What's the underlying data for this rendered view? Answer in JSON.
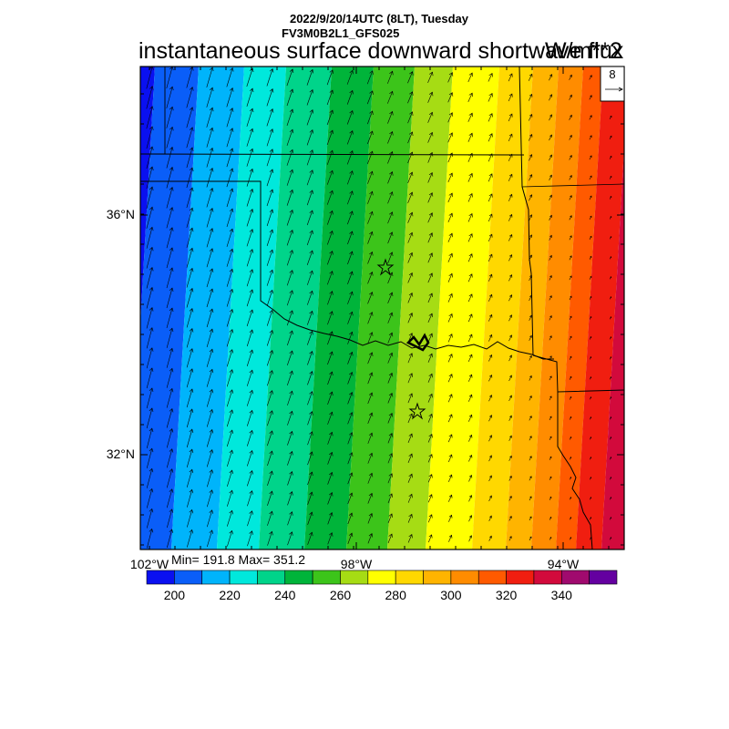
{
  "header": {
    "datetime": "2022/9/20/14UTC (8LT), Tuesday",
    "model": "FV3M0B2L1_GFS025",
    "title": "instantaneous surface downward shortwave flux",
    "units": "W/m**2"
  },
  "vector_reference": {
    "magnitude": "8"
  },
  "map": {
    "lat_labels": [
      "36°N",
      "32°N"
    ],
    "lon_labels": [
      "102°W",
      "98°W",
      "94°W"
    ],
    "stats": "Min= 191.8 Max= 351.2",
    "station_markers": [
      "star-icon",
      "star-icon"
    ]
  },
  "colorbar": {
    "tick_labels": [
      "200",
      "220",
      "240",
      "260",
      "280",
      "300",
      "320",
      "340"
    ],
    "bins": [
      {
        "lo": 190,
        "hi": 200,
        "color": "#0a10f0"
      },
      {
        "lo": 200,
        "hi": 210,
        "color": "#0a5ef8"
      },
      {
        "lo": 210,
        "hi": 220,
        "color": "#00b4fb"
      },
      {
        "lo": 220,
        "hi": 230,
        "color": "#00e8dc"
      },
      {
        "lo": 230,
        "hi": 240,
        "color": "#00d48a"
      },
      {
        "lo": 240,
        "hi": 250,
        "color": "#00b43a"
      },
      {
        "lo": 250,
        "hi": 260,
        "color": "#3cc41a"
      },
      {
        "lo": 260,
        "hi": 270,
        "color": "#a6dc14"
      },
      {
        "lo": 270,
        "hi": 280,
        "color": "#ffff00"
      },
      {
        "lo": 280,
        "hi": 290,
        "color": "#ffd800"
      },
      {
        "lo": 290,
        "hi": 300,
        "color": "#ffb400"
      },
      {
        "lo": 300,
        "hi": 310,
        "color": "#ff8c00"
      },
      {
        "lo": 310,
        "hi": 320,
        "color": "#ff5a00"
      },
      {
        "lo": 320,
        "hi": 330,
        "color": "#f01e10"
      },
      {
        "lo": 330,
        "hi": 340,
        "color": "#d20a3c"
      },
      {
        "lo": 340,
        "hi": 350,
        "color": "#a00a6e"
      },
      {
        "lo": 350,
        "hi": 360,
        "color": "#6400a0"
      }
    ]
  }
}
